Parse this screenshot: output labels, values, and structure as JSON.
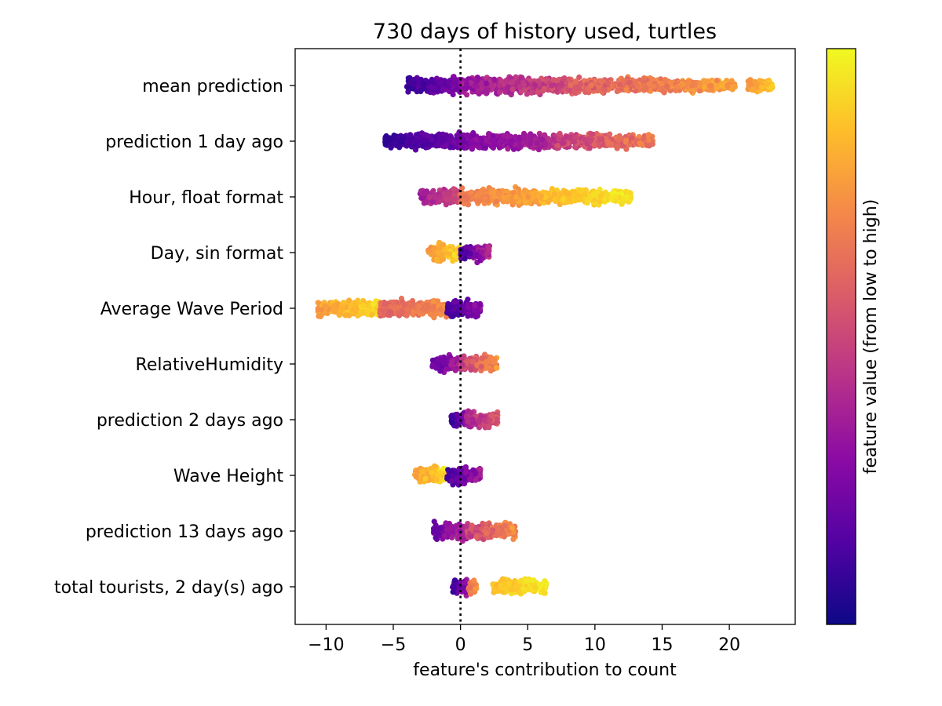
{
  "chart_data": {
    "type": "scatter",
    "subtype": "shap-beeswarm",
    "title": "730 days of history used, turtles",
    "xlabel": "feature's contribution to count",
    "ylabel": "",
    "xlim": [
      -12.3,
      24.9
    ],
    "xticks": [
      -10,
      -5,
      0,
      5,
      10,
      15,
      20
    ],
    "xtick_labels": [
      "−10",
      "−5",
      "0",
      "5",
      "10",
      "15",
      "20"
    ],
    "reference_line": {
      "x": 0,
      "style": "dotted",
      "color": "#000000"
    },
    "colorbar": {
      "label": "feature value (from low to high)",
      "colormap": "plasma",
      "stops": [
        "#0d0887",
        "#5302a3",
        "#8b0aa5",
        "#b83289",
        "#db5c68",
        "#f48849",
        "#febd2a",
        "#f0f921"
      ]
    },
    "features": [
      {
        "name": "mean prediction",
        "range": [
          -4.0,
          23.2
        ],
        "center": 4.0,
        "bands": [
          {
            "from": -4.0,
            "to": 0.0,
            "color": [
              0.05,
              0.3
            ]
          },
          {
            "from": 0.0,
            "to": 8.0,
            "color": [
              0.25,
              0.6
            ]
          },
          {
            "from": 8.0,
            "to": 20.5,
            "color": [
              0.5,
              0.85
            ]
          },
          {
            "from": 21.4,
            "to": 23.2,
            "color": [
              0.72,
              0.92
            ]
          }
        ]
      },
      {
        "name": "prediction 1 day ago",
        "range": [
          -5.6,
          14.3
        ],
        "center": 2.5,
        "bands": [
          {
            "from": -5.6,
            "to": 0.0,
            "color": [
              0.05,
              0.25
            ]
          },
          {
            "from": 0.0,
            "to": 7.0,
            "color": [
              0.2,
              0.45
            ]
          },
          {
            "from": 7.0,
            "to": 14.3,
            "color": [
              0.4,
              0.75
            ]
          }
        ]
      },
      {
        "name": "Hour, float format",
        "range": [
          -3.0,
          12.7
        ],
        "center": 3.0,
        "bands": [
          {
            "from": -3.0,
            "to": 0.0,
            "color": [
              0.3,
              0.55
            ]
          },
          {
            "from": 0.0,
            "to": 6.0,
            "color": [
              0.62,
              0.85
            ]
          },
          {
            "from": 6.0,
            "to": 12.7,
            "color": [
              0.8,
              1.0
            ]
          }
        ]
      },
      {
        "name": "Day, sin format",
        "range": [
          -2.4,
          2.2
        ],
        "center": 0.0,
        "bands": [
          {
            "from": -2.4,
            "to": 0.0,
            "color": [
              0.7,
              1.0
            ]
          },
          {
            "from": 0.0,
            "to": 2.2,
            "color": [
              0.05,
              0.5
            ]
          }
        ]
      },
      {
        "name": "Average Wave Period",
        "range": [
          -10.6,
          1.5
        ],
        "center": -1.0,
        "bands": [
          {
            "from": -10.6,
            "to": -6.0,
            "color": [
              0.72,
              0.98
            ]
          },
          {
            "from": -6.0,
            "to": -1.0,
            "color": [
              0.55,
              0.78
            ]
          },
          {
            "from": -1.0,
            "to": 1.5,
            "color": [
              0.05,
              0.35
            ]
          }
        ]
      },
      {
        "name": "RelativeHumidity",
        "range": [
          -2.1,
          2.7
        ],
        "center": 0.0,
        "bands": [
          {
            "from": -2.1,
            "to": 0.0,
            "color": [
              0.1,
              0.45
            ]
          },
          {
            "from": 0.0,
            "to": 2.7,
            "color": [
              0.4,
              0.8
            ]
          }
        ]
      },
      {
        "name": "prediction 2 days ago",
        "range": [
          -0.7,
          2.8
        ],
        "center": 0.5,
        "bands": [
          {
            "from": -0.7,
            "to": 0.4,
            "color": [
              0.05,
              0.3
            ]
          },
          {
            "from": 0.4,
            "to": 2.8,
            "color": [
              0.3,
              0.65
            ]
          }
        ]
      },
      {
        "name": "Wave Height",
        "range": [
          -3.4,
          1.5
        ],
        "center": 0.0,
        "bands": [
          {
            "from": -3.4,
            "to": -1.0,
            "color": [
              0.72,
              1.0
            ]
          },
          {
            "from": -1.0,
            "to": 1.5,
            "color": [
              0.05,
              0.4
            ]
          }
        ]
      },
      {
        "name": "prediction 13 days ago",
        "range": [
          -2.0,
          4.1
        ],
        "center": 0.0,
        "bands": [
          {
            "from": -2.0,
            "to": 0.5,
            "color": [
              0.15,
              0.45
            ]
          },
          {
            "from": 0.5,
            "to": 4.1,
            "color": [
              0.4,
              0.8
            ]
          }
        ]
      },
      {
        "name": "total tourists, 2 day(s) ago",
        "range": [
          -0.6,
          6.4
        ],
        "center": 0.0,
        "bands": [
          {
            "from": -0.6,
            "to": 0.6,
            "color": [
              0.05,
              0.4
            ]
          },
          {
            "from": 0.6,
            "to": 1.2,
            "color": [
              0.6,
              0.8
            ]
          },
          {
            "from": 2.4,
            "to": 6.4,
            "color": [
              0.82,
              1.0
            ]
          }
        ]
      }
    ]
  }
}
